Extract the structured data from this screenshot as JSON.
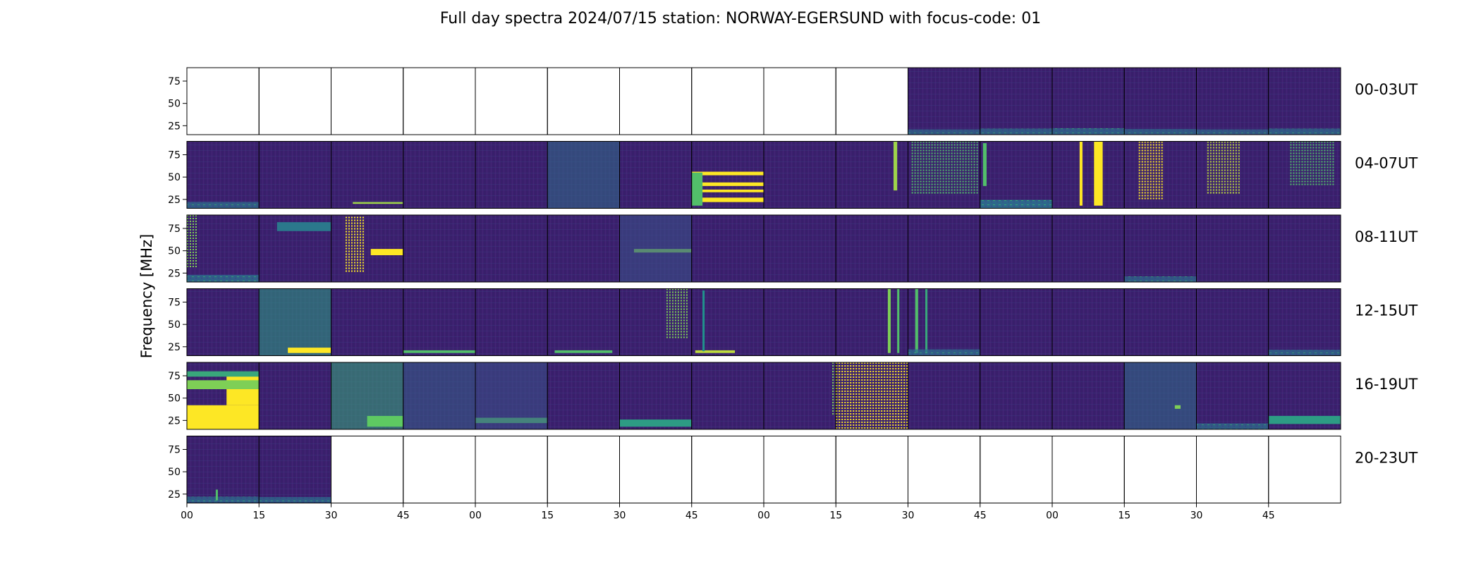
{
  "chart_data": {
    "type": "heatmap",
    "title": "Full day spectra 2024/07/15 station: NORWAY-EGERSUND with focus-code: 01",
    "ylabel": "Frequency [MHz]",
    "xlabel": "",
    "y_ticks": [
      "75",
      "50",
      "25"
    ],
    "y_tick_values": [
      75,
      50,
      25
    ],
    "ylim": [
      15,
      90
    ],
    "x_ticks": [
      "00",
      "15",
      "30",
      "45",
      "00",
      "15",
      "30",
      "45",
      "00",
      "15",
      "30",
      "45",
      "00",
      "15",
      "30",
      "45"
    ],
    "colormap": "viridis",
    "colors": {
      "low": "#440154",
      "background": "#3b1f6e",
      "mid": "#21918c",
      "high": "#fde725",
      "frame": "#000000"
    },
    "rows": [
      {
        "label": "00-03UT",
        "panels": [
          0,
          0,
          0,
          0,
          0,
          0,
          0,
          0,
          0,
          0,
          1,
          1,
          1,
          1,
          1,
          1
        ],
        "features": {
          "10": [
            {
              "kind": "bottom",
              "level": 0.35
            }
          ],
          "11": [
            {
              "kind": "bottom",
              "level": 0.45
            }
          ],
          "12": [
            {
              "kind": "bottom",
              "level": 0.5
            }
          ],
          "13": [
            {
              "kind": "bottom",
              "level": 0.4
            }
          ],
          "14": [
            {
              "kind": "bottom",
              "level": 0.35
            }
          ],
          "15": [
            {
              "kind": "bottom",
              "level": 0.45
            }
          ]
        }
      },
      {
        "label": "04-07UT",
        "panels": [
          1,
          1,
          1,
          1,
          1,
          1,
          1,
          1,
          1,
          1,
          1,
          1,
          1,
          1,
          1,
          1
        ],
        "features": {
          "0": [
            {
              "kind": "bottom",
              "level": 0.5
            }
          ],
          "2": [
            {
              "kind": "hband",
              "y0": 20,
              "y1": 22,
              "t0": 0.3,
              "t1": 1,
              "level": 0.85
            }
          ],
          "5": [
            {
              "kind": "wash",
              "level": 0.35
            }
          ],
          "7": [
            {
              "kind": "hband",
              "y0": 52,
              "y1": 56,
              "t0": 0,
              "t1": 1,
              "level": 1
            },
            {
              "kind": "hband",
              "y0": 40,
              "y1": 44,
              "t0": 0,
              "t1": 1,
              "level": 1
            },
            {
              "kind": "hband",
              "y0": 33,
              "y1": 36,
              "t0": 0,
              "t1": 1,
              "level": 1
            },
            {
              "kind": "hband",
              "y0": 22,
              "y1": 27,
              "t0": 0,
              "t1": 1,
              "level": 1
            },
            {
              "kind": "vband",
              "t0": 0,
              "t1": 0.15,
              "y0": 18,
              "y1": 55,
              "level": 0.7
            }
          ],
          "9": [
            {
              "kind": "vband",
              "t0": 0.8,
              "t1": 0.85,
              "y0": 35,
              "y1": 90,
              "level": 0.85
            }
          ],
          "10": [
            {
              "kind": "dots",
              "t0": 0.05,
              "t1": 0.95,
              "y0": 30,
              "y1": 90,
              "level": 0.7
            }
          ],
          "11": [
            {
              "kind": "vband",
              "t0": 0.04,
              "t1": 0.09,
              "y0": 40,
              "y1": 88,
              "level": 0.7
            },
            {
              "kind": "bottom",
              "level": 0.8
            }
          ],
          "12": [
            {
              "kind": "vband",
              "t0": 0.38,
              "t1": 0.42,
              "y0": 18,
              "y1": 90,
              "level": 1
            },
            {
              "kind": "vband",
              "t0": 0.58,
              "t1": 0.7,
              "y0": 18,
              "y1": 90,
              "level": 1
            }
          ],
          "13": [
            {
              "kind": "dots",
              "t0": 0.2,
              "t1": 0.55,
              "y0": 25,
              "y1": 90,
              "level": 1
            }
          ],
          "14": [
            {
              "kind": "dots",
              "t0": 0.15,
              "t1": 0.6,
              "y0": 30,
              "y1": 90,
              "level": 0.9
            }
          ],
          "15": [
            {
              "kind": "dots",
              "t0": 0.3,
              "t1": 0.9,
              "y0": 40,
              "y1": 90,
              "level": 0.7
            }
          ]
        }
      },
      {
        "label": "08-11UT",
        "panels": [
          1,
          1,
          1,
          1,
          1,
          1,
          1,
          1,
          1,
          1,
          1,
          1,
          1,
          1,
          1,
          1
        ],
        "features": {
          "0": [
            {
              "kind": "dots",
              "t0": 0,
              "t1": 0.12,
              "y0": 30,
              "y1": 90,
              "level": 0.8
            },
            {
              "kind": "bottom",
              "level": 0.6
            }
          ],
          "1": [
            {
              "kind": "hband",
              "y0": 72,
              "y1": 82,
              "t0": 0.25,
              "t1": 1,
              "level": 0.4
            }
          ],
          "2": [
            {
              "kind": "dots",
              "t0": 0.2,
              "t1": 0.45,
              "y0": 25,
              "y1": 88,
              "level": 1
            },
            {
              "kind": "hband",
              "y0": 45,
              "y1": 52,
              "t0": 0.55,
              "t1": 1,
              "level": 1
            }
          ],
          "6": [
            {
              "kind": "hband",
              "y0": 48,
              "y1": 52,
              "t0": 0.2,
              "t1": 1,
              "level": 0.8
            },
            {
              "kind": "wash",
              "level": 0.25
            }
          ],
          "13": [
            {
              "kind": "bottom",
              "level": 0.4
            }
          ]
        }
      },
      {
        "label": "12-15UT",
        "panels": [
          1,
          1,
          1,
          1,
          1,
          1,
          1,
          1,
          1,
          1,
          1,
          1,
          1,
          1,
          1,
          1
        ],
        "features": {
          "1": [
            {
              "kind": "wash",
              "level": 0.55
            },
            {
              "kind": "hband",
              "y0": 18,
              "y1": 24,
              "t0": 0.4,
              "t1": 1,
              "level": 1
            }
          ],
          "3": [
            {
              "kind": "hband",
              "y0": 18,
              "y1": 21,
              "t0": 0,
              "t1": 1,
              "level": 0.7
            }
          ],
          "5": [
            {
              "kind": "hband",
              "y0": 18,
              "y1": 21,
              "t0": 0.1,
              "t1": 0.9,
              "level": 0.7
            }
          ],
          "6": [
            {
              "kind": "dots",
              "t0": 0.65,
              "t1": 0.95,
              "y0": 35,
              "y1": 90,
              "level": 0.8
            }
          ],
          "7": [
            {
              "kind": "hband",
              "y0": 18,
              "y1": 21,
              "t0": 0.05,
              "t1": 0.6,
              "level": 0.9
            },
            {
              "kind": "vband",
              "t0": 0.15,
              "t1": 0.18,
              "y0": 20,
              "y1": 88,
              "level": 0.5
            }
          ],
          "9": [
            {
              "kind": "vband",
              "t0": 0.72,
              "t1": 0.76,
              "y0": 18,
              "y1": 90,
              "level": 0.8
            },
            {
              "kind": "vband",
              "t0": 0.85,
              "t1": 0.88,
              "y0": 18,
              "y1": 90,
              "level": 0.7
            }
          ],
          "10": [
            {
              "kind": "vband",
              "t0": 0.1,
              "t1": 0.14,
              "y0": 18,
              "y1": 90,
              "level": 0.7
            },
            {
              "kind": "vband",
              "t0": 0.24,
              "t1": 0.27,
              "y0": 18,
              "y1": 90,
              "level": 0.6
            },
            {
              "kind": "bottom",
              "level": 0.5
            }
          ],
          "15": [
            {
              "kind": "bottom",
              "level": 0.45
            }
          ]
        }
      },
      {
        "label": "16-19UT",
        "panels": [
          1,
          1,
          1,
          1,
          1,
          1,
          1,
          1,
          1,
          1,
          1,
          1,
          1,
          1,
          1,
          1
        ],
        "features": {
          "0": [
            {
              "kind": "hband",
              "y0": 15,
              "y1": 42,
              "t0": 0,
              "t1": 1,
              "level": 1
            },
            {
              "kind": "hband",
              "y0": 42,
              "y1": 75,
              "t0": 0.55,
              "t1": 1,
              "level": 1
            },
            {
              "kind": "hband",
              "y0": 60,
              "y1": 70,
              "t0": 0,
              "t1": 1,
              "level": 0.8
            },
            {
              "kind": "hband",
              "y0": 74,
              "y1": 80,
              "t0": 0,
              "t1": 1,
              "level": 0.6
            }
          ],
          "2": [
            {
              "kind": "wash",
              "level": 0.6
            },
            {
              "kind": "hband",
              "y0": 18,
              "y1": 30,
              "t0": 0.5,
              "t1": 1,
              "level": 0.75
            }
          ],
          "3": [
            {
              "kind": "wash",
              "level": 0.3
            }
          ],
          "4": [
            {
              "kind": "hband",
              "y0": 22,
              "y1": 28,
              "t0": 0,
              "t1": 1,
              "level": 0.7
            },
            {
              "kind": "wash",
              "level": 0.25
            }
          ],
          "6": [
            {
              "kind": "hband",
              "y0": 18,
              "y1": 26,
              "t0": 0,
              "t1": 1,
              "level": 0.55
            }
          ],
          "8": [
            {
              "kind": "dots",
              "t0": 0.95,
              "t1": 1,
              "y0": 30,
              "y1": 90,
              "level": 0.8
            }
          ],
          "9": [
            {
              "kind": "dots",
              "t0": 0,
              "t1": 1,
              "y0": 15,
              "y1": 90,
              "level": 1
            }
          ],
          "13": [
            {
              "kind": "wash",
              "level": 0.35
            },
            {
              "kind": "hband",
              "y0": 38,
              "y1": 42,
              "t0": 0.7,
              "t1": 0.78,
              "level": 0.8
            }
          ],
          "14": [
            {
              "kind": "bottom",
              "level": 0.45
            }
          ],
          "15": [
            {
              "kind": "hband",
              "y0": 21,
              "y1": 30,
              "t0": 0,
              "t1": 1,
              "level": 0.55
            }
          ]
        }
      },
      {
        "label": "20-23UT",
        "panels": [
          1,
          1,
          0,
          0,
          0,
          0,
          0,
          0,
          0,
          0,
          0,
          0,
          0,
          0,
          0,
          0
        ],
        "features": {
          "0": [
            {
              "kind": "bottom",
              "level": 0.5
            },
            {
              "kind": "vband",
              "t0": 0.4,
              "t1": 0.43,
              "y0": 18,
              "y1": 30,
              "level": 0.7
            }
          ],
          "1": [
            {
              "kind": "bottom",
              "level": 0.45
            }
          ]
        }
      }
    ]
  }
}
